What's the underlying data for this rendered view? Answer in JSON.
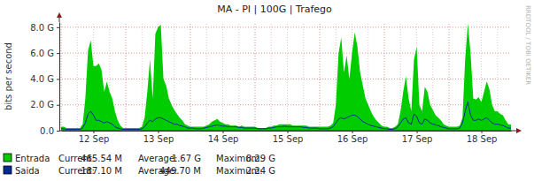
{
  "chart_data": {
    "type": "area",
    "title": "MA - PI | 100G | Trafego",
    "y_label": "bits per second",
    "watermark": "RRDTOOL / TOBI OETIKER",
    "categories": [
      null,
      null,
      null,
      null,
      null,
      null,
      null,
      null,
      null,
      null,
      null,
      null,
      "12 Sep",
      null,
      null,
      null,
      null,
      null,
      null,
      null,
      null,
      null,
      null,
      null,
      null,
      null,
      null,
      null,
      null,
      null,
      null,
      null,
      null,
      null,
      null,
      null,
      "13 Sep",
      null,
      null,
      null,
      null,
      null,
      null,
      null,
      null,
      null,
      null,
      null,
      null,
      null,
      null,
      null,
      null,
      null,
      null,
      null,
      null,
      null,
      null,
      null,
      "14 Sep",
      null,
      null,
      null,
      null,
      null,
      null,
      null,
      null,
      null,
      null,
      null,
      null,
      null,
      null,
      null,
      null,
      null,
      null,
      null,
      null,
      null,
      null,
      null,
      "15 Sep",
      null,
      null,
      null,
      null,
      null,
      null,
      null,
      null,
      null,
      null,
      null,
      null,
      null,
      null,
      null,
      null,
      null,
      null,
      null,
      null,
      null,
      null,
      null,
      "16 Sep",
      null,
      null,
      null,
      null,
      null,
      null,
      null,
      null,
      null,
      null,
      null,
      null,
      null,
      null,
      null,
      null,
      null,
      null,
      null,
      null,
      null,
      null,
      null,
      "17 Sep",
      null,
      null,
      null,
      null,
      null,
      null,
      null,
      null,
      null,
      null,
      null,
      null,
      null,
      null,
      null,
      null,
      null,
      null,
      null,
      null,
      null,
      null,
      null,
      "18 Sep",
      null,
      null,
      null,
      null,
      null,
      null,
      null,
      null,
      null,
      null,
      null
    ],
    "series": [
      {
        "name": "Entrada",
        "color": "#00cc00",
        "type": "area",
        "stats": [
          {
            "name": "Current:",
            "value": 0.46554,
            "label": "465.54 M"
          },
          {
            "name": "Average:",
            "value": 1.67,
            "label": "1.67 G"
          },
          {
            "name": "Maximum:",
            "value": 8.29,
            "label": "8.29 G"
          }
        ],
        "values": [
          0.3,
          0.3,
          0.2,
          0.2,
          0.2,
          0.2,
          0.2,
          0.2,
          0.5,
          2.5,
          6.2,
          7.0,
          5.0,
          5.0,
          5.2,
          4.7,
          3.0,
          3.8,
          3.0,
          2.5,
          1.5,
          0.8,
          0.4,
          0.2,
          0.2,
          0.2,
          0.2,
          0.2,
          0.2,
          0.2,
          0.3,
          1.0,
          3.0,
          5.5,
          2.5,
          7.5,
          8.0,
          8.2,
          4.0,
          3.5,
          2.5,
          2.0,
          1.6,
          1.3,
          1.0,
          0.8,
          0.5,
          0.4,
          0.3,
          0.3,
          0.3,
          0.3,
          0.3,
          0.3,
          0.4,
          0.5,
          0.7,
          0.8,
          0.9,
          0.7,
          0.6,
          0.5,
          0.5,
          0.4,
          0.4,
          0.4,
          0.3,
          0.4,
          0.3,
          0.3,
          0.3,
          0.3,
          0.3,
          0.2,
          0.2,
          0.2,
          0.2,
          0.3,
          0.3,
          0.4,
          0.4,
          0.5,
          0.5,
          0.5,
          0.5,
          0.5,
          0.4,
          0.4,
          0.4,
          0.4,
          0.4,
          0.4,
          0.3,
          0.3,
          0.3,
          0.3,
          0.3,
          0.3,
          0.3,
          0.3,
          0.4,
          0.6,
          2.0,
          6.0,
          7.2,
          4.5,
          5.8,
          4.0,
          6.0,
          7.6,
          6.5,
          4.5,
          3.5,
          2.5,
          2.0,
          1.5,
          1.1,
          0.8,
          0.6,
          0.4,
          0.3,
          0.3,
          0.2,
          0.2,
          0.3,
          0.5,
          1.5,
          3.0,
          4.2,
          2.5,
          1.5,
          5.5,
          6.5,
          2.0,
          1.5,
          3.4,
          3.0,
          2.0,
          1.6,
          1.2,
          1.0,
          0.8,
          0.5,
          0.4,
          0.3,
          0.3,
          0.3,
          0.3,
          0.4,
          1.0,
          5.5,
          8.29,
          6.0,
          2.5,
          2.4,
          2.6,
          2.2,
          3.0,
          3.8,
          3.2,
          2.0,
          1.5,
          1.5,
          1.3,
          1.2,
          0.8,
          0.5,
          0.47
        ]
      },
      {
        "name": "Saida",
        "color": "#002a97",
        "type": "line",
        "stats": [
          {
            "name": "Current:",
            "value": 0.1871,
            "label": "187.10 M"
          },
          {
            "name": "Average:",
            "value": 0.4497,
            "label": "449.70 M"
          },
          {
            "name": "Maximum:",
            "value": 2.24,
            "label": "2.24 G"
          }
        ],
        "values": [
          0.15,
          0.15,
          0.1,
          0.1,
          0.1,
          0.1,
          0.1,
          0.1,
          0.2,
          0.6,
          1.3,
          1.5,
          1.2,
          0.8,
          0.8,
          0.7,
          0.6,
          0.7,
          0.6,
          0.5,
          0.3,
          0.2,
          0.15,
          0.1,
          0.1,
          0.1,
          0.1,
          0.1,
          0.1,
          0.1,
          0.15,
          0.3,
          0.6,
          0.8,
          0.7,
          0.9,
          1.0,
          1.0,
          0.9,
          0.8,
          0.7,
          0.6,
          0.5,
          0.5,
          0.4,
          0.35,
          0.3,
          0.2,
          0.2,
          0.2,
          0.15,
          0.15,
          0.15,
          0.2,
          0.25,
          0.3,
          0.35,
          0.4,
          0.45,
          0.4,
          0.35,
          0.35,
          0.3,
          0.3,
          0.3,
          0.3,
          0.25,
          0.25,
          0.2,
          0.2,
          0.2,
          0.2,
          0.2,
          0.15,
          0.15,
          0.15,
          0.15,
          0.2,
          0.2,
          0.25,
          0.3,
          0.3,
          0.3,
          0.35,
          0.3,
          0.3,
          0.3,
          0.3,
          0.3,
          0.3,
          0.25,
          0.25,
          0.2,
          0.2,
          0.2,
          0.2,
          0.15,
          0.15,
          0.15,
          0.15,
          0.2,
          0.3,
          0.6,
          0.9,
          1.0,
          0.9,
          1.0,
          1.1,
          1.2,
          1.2,
          1.1,
          0.9,
          0.7,
          0.6,
          0.5,
          0.4,
          0.35,
          0.3,
          0.25,
          0.2,
          0.15,
          0.15,
          0.1,
          0.1,
          0.15,
          0.3,
          0.6,
          0.9,
          1.0,
          0.6,
          0.5,
          1.3,
          1.1,
          0.6,
          0.5,
          0.9,
          0.8,
          0.6,
          0.5,
          0.45,
          0.4,
          0.3,
          0.25,
          0.2,
          0.15,
          0.15,
          0.15,
          0.15,
          0.2,
          0.6,
          1.5,
          2.24,
          1.2,
          0.8,
          0.8,
          0.9,
          0.8,
          0.9,
          1.0,
          0.8,
          0.6,
          0.5,
          0.5,
          0.45,
          0.4,
          0.3,
          0.2,
          0.19
        ]
      }
    ],
    "ylim": [
      0,
      8.4
    ],
    "yticks": [
      {
        "value": 0,
        "label": "0.0"
      },
      {
        "value": 2,
        "label": "2.0 G"
      },
      {
        "value": 4,
        "label": "4.0 G"
      },
      {
        "value": 6,
        "label": "6.0 G"
      },
      {
        "value": 8,
        "label": "8.0 G"
      }
    ],
    "grid": true,
    "legend": "bottom"
  }
}
